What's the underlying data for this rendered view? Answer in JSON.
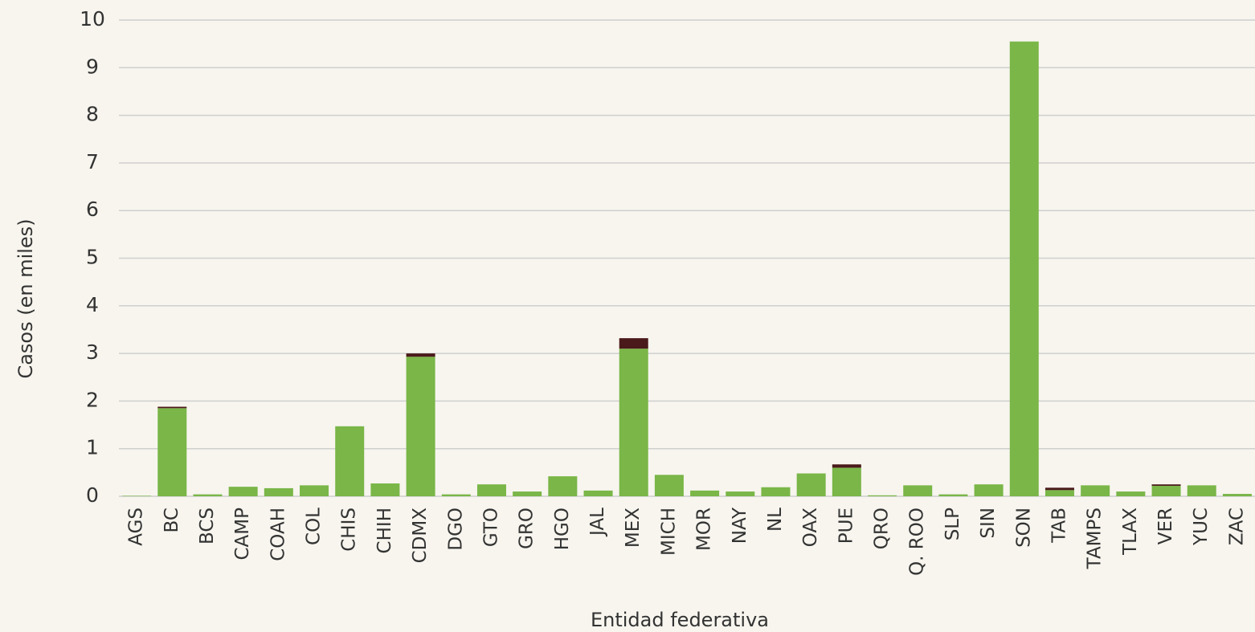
{
  "chart_data": {
    "type": "stacked-bar",
    "y_label": "Casos (en miles)",
    "x_label": "Entidad federativa",
    "categories": [
      "AGS",
      "BC",
      "BCS",
      "CAMP",
      "COAH",
      "COL",
      "CHIS",
      "CHIH",
      "CDMX",
      "DGO",
      "GTO",
      "GRO",
      "HGO",
      "JAL",
      "MEX",
      "MICH",
      "MOR",
      "NAY",
      "NL",
      "OAX",
      "PUE",
      "QRO",
      "Q. ROO",
      "SLP",
      "SIN",
      "SON",
      "TAB",
      "TAMPS",
      "TLAX",
      "VER",
      "YUC",
      "ZAC"
    ],
    "series": [
      {
        "color": "#7ab648",
        "values": [
          0.01,
          1.85,
          0.04,
          0.2,
          0.17,
          0.23,
          1.47,
          0.27,
          2.93,
          0.04,
          0.25,
          0.1,
          0.42,
          0.12,
          3.1,
          0.45,
          0.12,
          0.1,
          0.19,
          0.48,
          0.6,
          0.02,
          0.23,
          0.04,
          0.25,
          9.55,
          0.13,
          0.23,
          0.1,
          0.22,
          0.23,
          0.05
        ]
      },
      {
        "color": "#4a1a1a",
        "values": [
          0,
          0.03,
          0,
          0,
          0,
          0,
          0,
          0,
          0.07,
          0,
          0,
          0,
          0,
          0,
          0.22,
          0,
          0,
          0,
          0,
          0,
          0.07,
          0,
          0,
          0,
          0,
          0,
          0.05,
          0,
          0,
          0.03,
          0,
          0
        ]
      }
    ],
    "ylim": [
      0,
      10
    ],
    "yticks": [
      0,
      1,
      2,
      3,
      4,
      5,
      6,
      7,
      8,
      9,
      10
    ],
    "grid": true
  }
}
